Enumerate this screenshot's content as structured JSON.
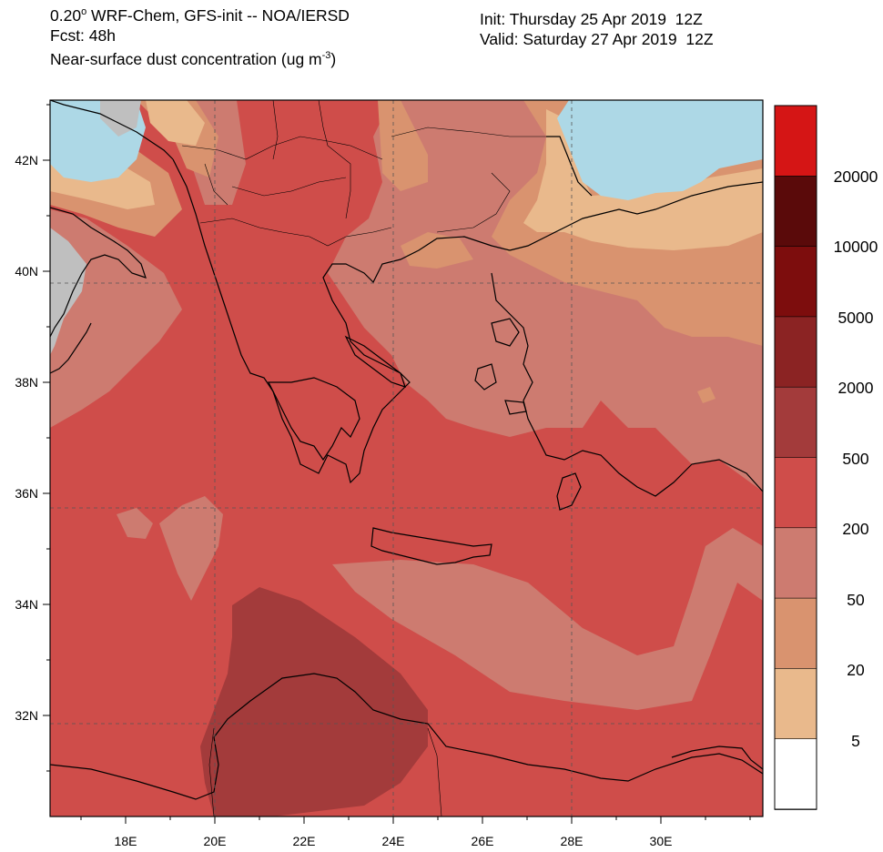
{
  "header": {
    "line1_prefix": "0.20",
    "line1_rest": " WRF-Chem, GFS-init -- NOA/IERSD",
    "line2": "Fcst: 48h",
    "line3": "Near-surface dust concentration (ug m",
    "line3_exp": "-3",
    "line3_close": ")",
    "init": "Init: Thursday 25 Apr 2019  12Z",
    "valid": "Valid: Saturday 27 Apr 2019  12Z"
  },
  "axes": {
    "lat_labels": [
      "42N",
      "40N",
      "38N",
      "36N",
      "34N",
      "32N"
    ],
    "lon_labels": [
      "18E",
      "20E",
      "22E",
      "24E",
      "26E",
      "28E",
      "30E"
    ]
  },
  "legend": {
    "labels": [
      "20000",
      "10000",
      "5000",
      "2000",
      "500",
      "200",
      "50",
      "20",
      "5"
    ],
    "colors": [
      "#d51515",
      "#5a0a0a",
      "#7d0d0d",
      "#8b2323",
      "#a33b3b",
      "#cf4d4a",
      "#cd7b70",
      "#d9936f",
      "#e9b98c",
      "#ffffff"
    ]
  },
  "colors": {
    "sea": "#add8e6",
    "land_outside": "#bfbfbf",
    "c5": "#e9b98c",
    "c20": "#d9936f",
    "c50": "#cd7b70",
    "c200": "#cf4d4a",
    "c500": "#a33b3b"
  }
}
